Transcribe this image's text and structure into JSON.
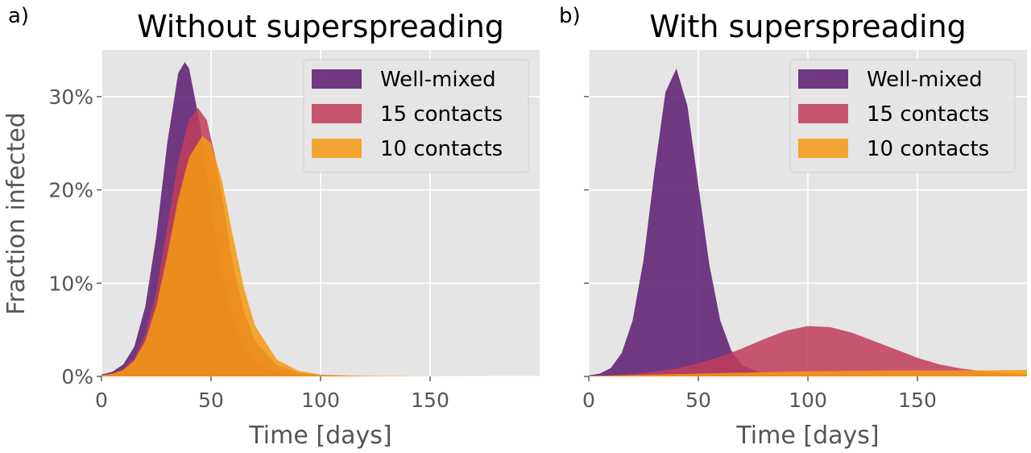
{
  "chart_data": [
    {
      "type": "area",
      "panel_label": "a)",
      "title": "Without superspreading",
      "xlabel": "Time [days]",
      "ylabel": "Fraction infected",
      "xlim": [
        0,
        200
      ],
      "ylim": [
        0,
        35
      ],
      "xticks": [
        0,
        50,
        100,
        150
      ],
      "xtick_labels": [
        "0",
        "50",
        "100",
        "150"
      ],
      "yticks": [
        0,
        10,
        20,
        30
      ],
      "ytick_labels": [
        "0%",
        "10%",
        "20%",
        "30%"
      ],
      "grid": true,
      "legend_position": "top-right",
      "series": [
        {
          "name": "Well-mixed",
          "color": "#5c1a70",
          "x": [
            0,
            5,
            10,
            15,
            20,
            25,
            30,
            35,
            38,
            40,
            45,
            50,
            55,
            60,
            65,
            70,
            80,
            90,
            100,
            120,
            150,
            200
          ],
          "y": [
            0.2,
            0.5,
            1.3,
            3.2,
            7.5,
            15,
            25,
            32.5,
            33.7,
            33,
            27,
            18,
            11,
            6,
            3,
            1.6,
            0.5,
            0.15,
            0.05,
            0.01,
            0,
            0
          ]
        },
        {
          "name": "15 contacts",
          "color": "#c13d5c",
          "x": [
            0,
            5,
            10,
            15,
            20,
            25,
            30,
            35,
            40,
            44,
            48,
            52,
            56,
            60,
            65,
            70,
            80,
            90,
            100,
            120,
            150,
            200
          ],
          "y": [
            0.1,
            0.3,
            0.8,
            2,
            4.5,
            9,
            16,
            23,
            27.5,
            28.8,
            27.5,
            23.5,
            18,
            12,
            7,
            3.8,
            1.2,
            0.4,
            0.15,
            0.03,
            0,
            0
          ]
        },
        {
          "name": "10 contacts",
          "color": "#f59a10",
          "x": [
            0,
            5,
            10,
            15,
            20,
            25,
            30,
            35,
            40,
            46,
            50,
            55,
            60,
            65,
            70,
            80,
            90,
            100,
            120,
            150,
            200
          ],
          "y": [
            0.1,
            0.3,
            0.7,
            1.7,
            3.8,
            7.5,
            13,
            19,
            23.5,
            25.8,
            25,
            21,
            15,
            9.5,
            5.5,
            1.8,
            0.6,
            0.2,
            0.05,
            0.01,
            0
          ]
        }
      ]
    },
    {
      "type": "area",
      "panel_label": "b)",
      "title": "With superspreading",
      "xlabel": "Time [days]",
      "ylabel": "",
      "xlim": [
        0,
        200
      ],
      "ylim": [
        0,
        35
      ],
      "xticks": [
        0,
        50,
        100,
        150
      ],
      "xtick_labels": [
        "0",
        "50",
        "100",
        "150"
      ],
      "yticks": [
        0,
        10,
        20,
        30
      ],
      "ytick_labels": [],
      "grid": true,
      "legend_position": "top-right",
      "series": [
        {
          "name": "Well-mixed",
          "color": "#5c1a70",
          "x": [
            0,
            5,
            10,
            15,
            20,
            25,
            30,
            35,
            40,
            45,
            50,
            55,
            60,
            65,
            70,
            80,
            90,
            100,
            120,
            150,
            200
          ],
          "y": [
            0.1,
            0.3,
            0.9,
            2.5,
            6,
            12.5,
            22,
            30.5,
            33,
            29,
            20.5,
            12,
            6,
            2.8,
            1.2,
            0.25,
            0.05,
            0.01,
            0,
            0,
            0
          ]
        },
        {
          "name": "15 contacts",
          "color": "#c13d5c",
          "x": [
            0,
            10,
            20,
            30,
            40,
            50,
            60,
            70,
            80,
            90,
            100,
            110,
            120,
            130,
            140,
            150,
            160,
            170,
            180,
            190,
            200
          ],
          "y": [
            0.05,
            0.12,
            0.25,
            0.5,
            0.85,
            1.4,
            2.1,
            3,
            4,
            4.9,
            5.4,
            5.3,
            4.7,
            3.8,
            2.9,
            2,
            1.3,
            0.85,
            0.55,
            0.35,
            0.2
          ]
        },
        {
          "name": "10 contacts",
          "color": "#f59a10",
          "x": [
            0,
            20,
            40,
            60,
            80,
            100,
            120,
            140,
            160,
            180,
            200
          ],
          "y": [
            0.05,
            0.15,
            0.25,
            0.35,
            0.45,
            0.55,
            0.6,
            0.65,
            0.65,
            0.65,
            0.7
          ]
        }
      ]
    }
  ]
}
